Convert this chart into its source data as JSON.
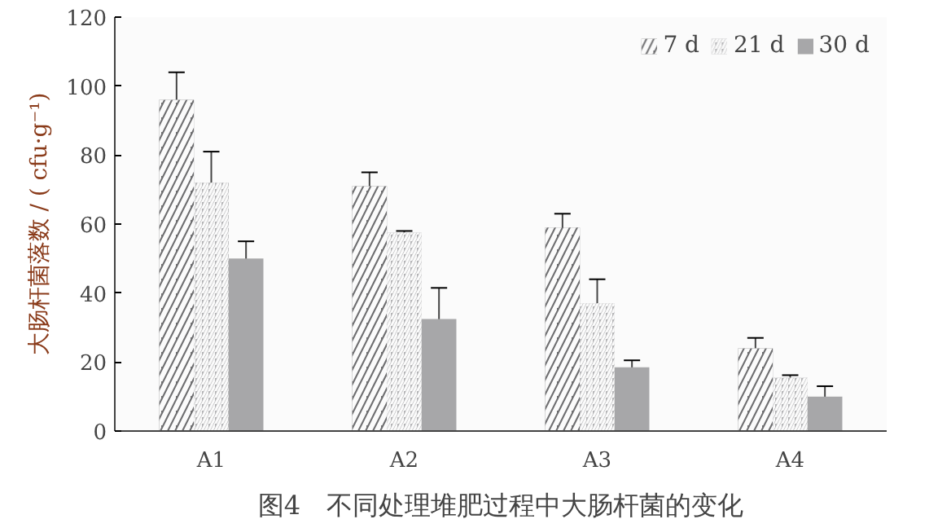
{
  "chart_data": {
    "type": "bar",
    "ylabel": "大肠杆菌落数 / ( cfu·g⁻¹)",
    "categories": [
      "A1",
      "A2",
      "A3",
      "A4"
    ],
    "series": [
      {
        "name": "7 d",
        "color": "#6e6e70",
        "values": [
          96,
          71,
          59,
          24
        ],
        "errors": [
          8,
          4,
          4,
          3
        ]
      },
      {
        "name": "21 d",
        "color": "#b4b4b6",
        "values": [
          72,
          57.5,
          37,
          15.5
        ],
        "errors": [
          9,
          0.5,
          7,
          0.7
        ]
      },
      {
        "name": "30 d",
        "color": "#a7a7a9",
        "values": [
          50,
          32.5,
          18.5,
          10
        ],
        "errors": [
          5,
          9,
          2,
          3
        ]
      }
    ],
    "ylim": [
      0,
      120
    ],
    "yticks": [
      0,
      20,
      40,
      60,
      80,
      100,
      120
    ],
    "grid": false,
    "legend": "top right",
    "annotations": [
      "图4　不同处理堆肥过程中大肠杆菌的变化"
    ]
  }
}
